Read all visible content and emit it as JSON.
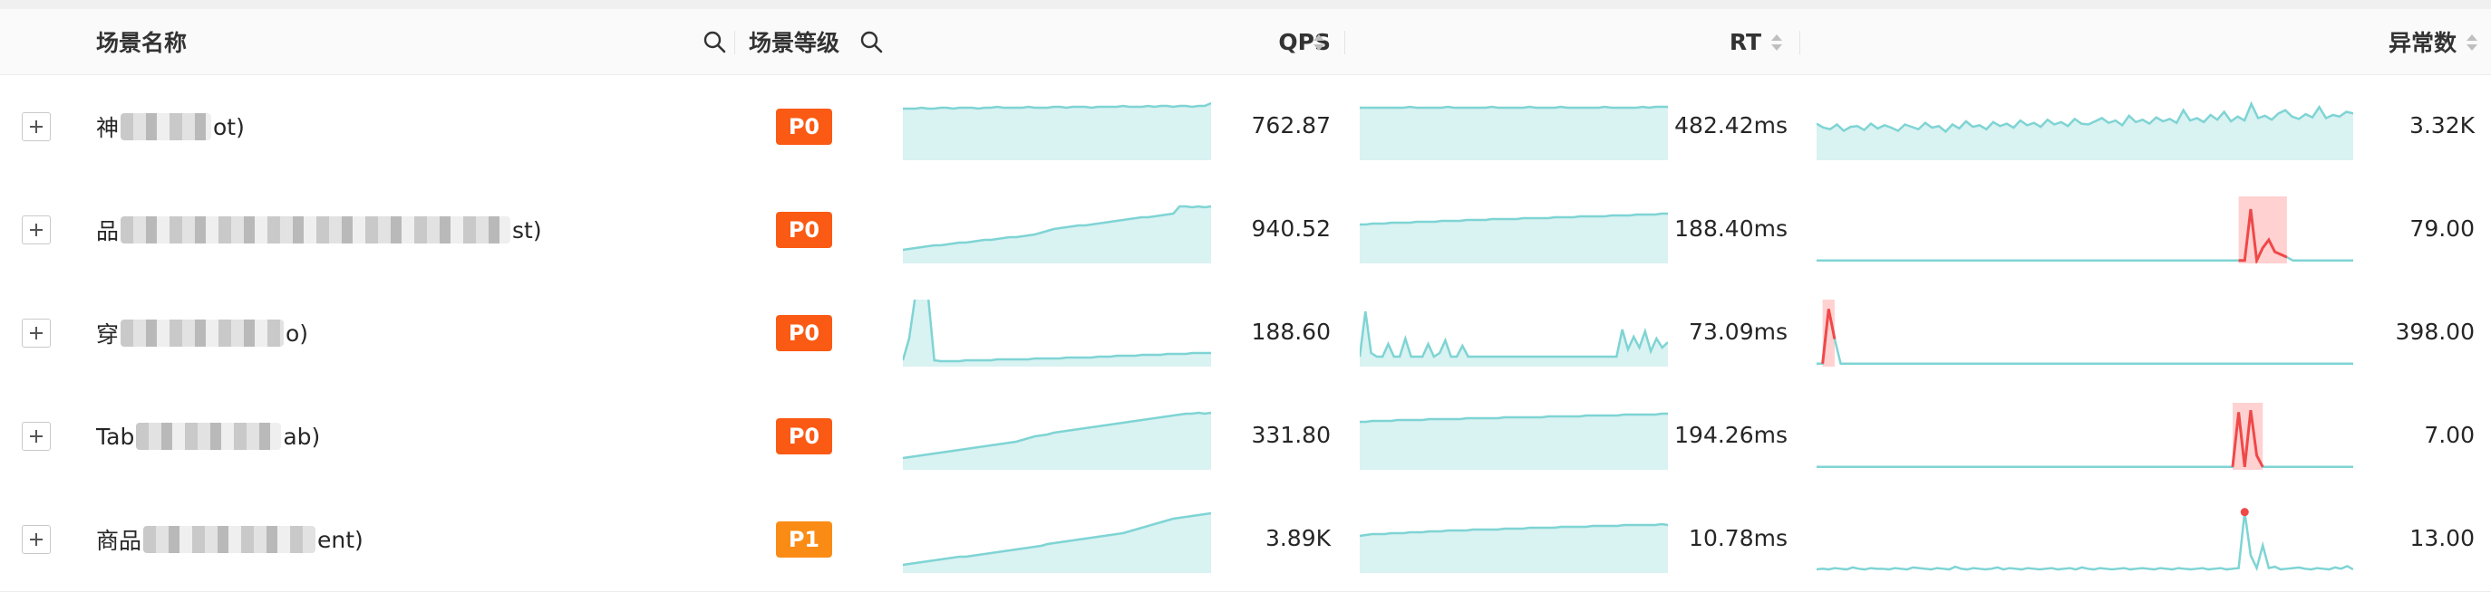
{
  "table": {
    "columns": {
      "scene_name": "场景名称",
      "scene_level": "场景等级",
      "qps": "QPS",
      "rt": "RT",
      "errors": "异常数"
    },
    "rows": [
      {
        "name_prefix": "神",
        "name_suffix": "ot)",
        "level": "P0",
        "level_color": "#fa5a14",
        "qps": "762.87",
        "rt": "482.42ms",
        "errors": "3.32K",
        "qps_trend": [
          56,
          56,
          56,
          57,
          56,
          56,
          57,
          57,
          56,
          57,
          57,
          57,
          56,
          57,
          57,
          58,
          57,
          57,
          57,
          57,
          58,
          57,
          57,
          57,
          58,
          58,
          57,
          58,
          58,
          58,
          57,
          58,
          58,
          58,
          58,
          59,
          58,
          58,
          58,
          59,
          58,
          59,
          59,
          58,
          59,
          59,
          58,
          59,
          59,
          62
        ],
        "rt_trend": [
          57,
          57,
          57,
          57,
          57,
          57,
          57,
          57,
          58,
          57,
          57,
          57,
          57,
          57,
          58,
          57,
          57,
          57,
          57,
          57,
          57,
          58,
          57,
          57,
          57,
          57,
          57,
          58,
          57,
          57,
          57,
          57,
          58,
          57,
          57,
          57,
          57,
          57,
          57,
          58,
          57,
          57,
          57,
          57,
          57,
          58,
          57,
          58,
          58,
          58
        ],
        "err_trend": [
          45,
          40,
          38,
          44,
          36,
          41,
          42,
          37,
          45,
          39,
          43,
          40,
          36,
          44,
          41,
          38,
          46,
          40,
          42,
          35,
          44,
          39,
          48,
          41,
          43,
          38,
          47,
          42,
          45,
          40,
          49,
          43,
          46,
          41,
          50,
          44,
          47,
          42,
          51,
          45,
          44,
          48,
          52,
          46,
          49,
          43,
          55,
          47,
          50,
          45,
          53,
          48,
          51,
          46,
          62,
          49,
          52,
          47,
          56,
          50,
          60,
          48,
          54,
          49,
          70,
          52,
          55,
          50,
          58,
          62,
          54,
          51,
          57,
          53,
          66,
          52,
          56,
          54,
          60,
          58
        ],
        "err_spikes": []
      },
      {
        "name_prefix": "品",
        "name_suffix": "st)",
        "level": "P0",
        "level_color": "#fa5a14",
        "qps": "940.52",
        "rt": "188.40ms",
        "errors": "79.00",
        "qps_trend": [
          14,
          15,
          16,
          17,
          18,
          19,
          19,
          20,
          21,
          22,
          22,
          23,
          24,
          25,
          25,
          26,
          27,
          28,
          28,
          29,
          30,
          31,
          33,
          35,
          37,
          38,
          39,
          40,
          41,
          41,
          42,
          43,
          44,
          45,
          46,
          47,
          48,
          49,
          50,
          50,
          51,
          52,
          53,
          54,
          62,
          62,
          61,
          62,
          61,
          62
        ],
        "rt_trend": [
          42,
          42,
          43,
          43,
          43,
          44,
          44,
          44,
          44,
          45,
          45,
          45,
          45,
          46,
          46,
          46,
          46,
          47,
          47,
          47,
          47,
          48,
          48,
          48,
          48,
          48,
          49,
          49,
          49,
          49,
          49,
          50,
          50,
          50,
          50,
          51,
          51,
          51,
          51,
          51,
          52,
          52,
          52,
          52,
          53,
          53,
          53,
          53,
          54,
          54
        ],
        "err_trend": [
          3,
          3,
          3,
          3,
          3,
          3,
          3,
          3,
          3,
          3,
          3,
          3,
          3,
          3,
          3,
          3,
          3,
          3,
          3,
          3,
          3,
          3,
          3,
          3,
          3,
          3,
          3,
          3,
          3,
          3,
          3,
          3,
          3,
          3,
          3,
          3,
          3,
          3,
          3,
          3,
          3,
          3,
          3,
          3,
          3,
          3,
          3,
          3,
          3,
          3,
          3,
          3,
          3,
          3,
          3,
          3,
          3,
          3,
          3,
          3,
          3,
          3,
          3,
          3,
          3,
          3,
          3,
          3,
          3,
          3,
          3,
          3,
          3,
          3,
          3,
          3,
          3,
          3,
          3,
          3,
          3,
          3,
          3,
          3,
          3,
          3,
          3,
          3,
          3,
          3
        ],
        "err_spikes": [
          {
            "index": 72,
            "value": 80
          },
          {
            "index": 74,
            "value": 22
          },
          {
            "index": 75,
            "value": 34
          },
          {
            "index": 76,
            "value": 16
          },
          {
            "index": 77,
            "value": 12
          },
          {
            "index": 78,
            "value": 8
          }
        ],
        "err_highlight": [
          70,
          78
        ]
      },
      {
        "name_prefix": "穿",
        "name_suffix": "o)",
        "level": "P0",
        "level_color": "#fa5a14",
        "qps": "188.60",
        "rt": "73.09ms",
        "errors": "398.00",
        "qps_trend": [
          6,
          30,
          78,
          82,
          78,
          6,
          5,
          5,
          5,
          5,
          6,
          6,
          6,
          6,
          6,
          7,
          7,
          7,
          7,
          7,
          7,
          8,
          8,
          8,
          8,
          8,
          9,
          9,
          9,
          9,
          9,
          10,
          10,
          10,
          11,
          11,
          11,
          11,
          12,
          12,
          12,
          12,
          13,
          13,
          13,
          13,
          14,
          14,
          14,
          14
        ],
        "rt_trend": [
          10,
          60,
          14,
          10,
          10,
          24,
          10,
          10,
          30,
          10,
          10,
          10,
          24,
          10,
          14,
          28,
          10,
          10,
          22,
          10,
          10,
          10,
          10,
          10,
          10,
          10,
          10,
          10,
          10,
          10,
          10,
          10,
          10,
          10,
          10,
          10,
          10,
          10,
          10,
          10,
          10,
          10,
          10,
          10,
          10,
          10,
          40,
          18,
          32,
          20,
          38,
          16,
          30,
          20,
          26
        ],
        "err_trend": [
          3,
          3,
          3,
          3,
          3,
          3,
          3,
          3,
          3,
          3,
          3,
          3,
          3,
          3,
          3,
          3,
          3,
          3,
          3,
          3,
          3,
          3,
          3,
          3,
          3,
          3,
          3,
          3,
          3,
          3,
          3,
          3,
          3,
          3,
          3,
          3,
          3,
          3,
          3,
          3,
          3,
          3,
          3,
          3,
          3,
          3,
          3,
          3,
          3,
          3,
          3,
          3,
          3,
          3,
          3,
          3,
          3,
          3,
          3,
          3,
          3,
          3,
          3,
          3,
          3,
          3,
          3,
          3,
          3,
          3,
          3,
          3,
          3,
          3,
          3,
          3,
          3,
          3,
          3,
          3,
          3,
          3,
          3,
          3,
          3,
          3,
          3,
          3,
          3,
          3
        ],
        "err_spikes": [
          {
            "index": 2,
            "value": 85
          },
          {
            "index": 3,
            "value": 40
          }
        ],
        "err_highlight": [
          1,
          3
        ]
      },
      {
        "name_prefix": "Tab",
        "name_suffix": "ab)",
        "level": "P0",
        "level_color": "#fa5a14",
        "qps": "331.80",
        "rt": "194.26ms",
        "errors": "7.00",
        "qps_trend": [
          12,
          13,
          14,
          15,
          16,
          17,
          18,
          19,
          20,
          21,
          22,
          23,
          24,
          25,
          26,
          27,
          28,
          29,
          30,
          32,
          34,
          36,
          37,
          38,
          40,
          41,
          42,
          43,
          44,
          45,
          46,
          47,
          48,
          49,
          50,
          51,
          52,
          53,
          54,
          55,
          56,
          57,
          58,
          59,
          60,
          61,
          61,
          62,
          61,
          62
        ],
        "rt_trend": [
          52,
          52,
          53,
          53,
          53,
          53,
          54,
          54,
          54,
          54,
          54,
          55,
          55,
          55,
          55,
          55,
          55,
          56,
          56,
          56,
          56,
          56,
          56,
          57,
          57,
          57,
          57,
          57,
          57,
          57,
          58,
          58,
          58,
          58,
          58,
          58,
          59,
          59,
          59,
          59,
          59,
          59,
          60,
          60,
          60,
          60,
          60,
          60,
          61,
          61
        ],
        "err_trend": [
          3,
          3,
          3,
          3,
          3,
          3,
          3,
          3,
          3,
          3,
          3,
          3,
          3,
          3,
          3,
          3,
          3,
          3,
          3,
          3,
          3,
          3,
          3,
          3,
          3,
          3,
          3,
          3,
          3,
          3,
          3,
          3,
          3,
          3,
          3,
          3,
          3,
          3,
          3,
          3,
          3,
          3,
          3,
          3,
          3,
          3,
          3,
          3,
          3,
          3,
          3,
          3,
          3,
          3,
          3,
          3,
          3,
          3,
          3,
          3,
          3,
          3,
          3,
          3,
          3,
          3,
          3,
          3,
          3,
          3,
          3,
          3,
          3,
          3,
          3,
          3,
          3,
          3,
          3,
          3,
          3,
          3,
          3,
          3,
          3,
          3,
          3,
          3,
          3,
          3
        ],
        "err_spikes": [
          {
            "index": 70,
            "value": 85
          },
          {
            "index": 72,
            "value": 88
          },
          {
            "index": 73,
            "value": 20
          }
        ],
        "err_highlight": [
          69,
          74
        ]
      },
      {
        "name_prefix": "商品",
        "name_suffix": "ent)",
        "level": "P1",
        "level_color": "#fa8c16",
        "qps": "3.89K",
        "rt": "10.78ms",
        "errors": "13.00",
        "qps_trend": [
          8,
          9,
          10,
          11,
          12,
          13,
          14,
          15,
          16,
          17,
          17,
          18,
          19,
          20,
          21,
          22,
          23,
          24,
          25,
          26,
          27,
          28,
          29,
          31,
          32,
          33,
          34,
          35,
          36,
          37,
          38,
          39,
          40,
          41,
          42,
          43,
          45,
          47,
          49,
          51,
          53,
          55,
          57,
          59,
          60,
          61,
          62,
          63,
          64,
          65
        ],
        "rt_trend": [
          40,
          41,
          42,
          42,
          42,
          43,
          43,
          43,
          44,
          44,
          44,
          45,
          45,
          45,
          46,
          46,
          46,
          46,
          47,
          47,
          47,
          47,
          47,
          48,
          48,
          48,
          48,
          49,
          49,
          49,
          49,
          49,
          50,
          50,
          50,
          50,
          50,
          51,
          51,
          51,
          51,
          51,
          52,
          52,
          52,
          52,
          52,
          52,
          53,
          52
        ],
        "err_trend": [
          4,
          5,
          4,
          6,
          5,
          4,
          7,
          5,
          4,
          6,
          5,
          5,
          4,
          6,
          5,
          4,
          7,
          6,
          5,
          4,
          6,
          5,
          4,
          8,
          5,
          4,
          6,
          5,
          4,
          5,
          7,
          4,
          6,
          5,
          4,
          6,
          5,
          4,
          5,
          6,
          4,
          5,
          6,
          4,
          7,
          5,
          4,
          6,
          5,
          4,
          5,
          6,
          4,
          5,
          6,
          5,
          4,
          6,
          5,
          4,
          6,
          5,
          4,
          5,
          6,
          4,
          5,
          6,
          4,
          5,
          6,
          4,
          5,
          6,
          40,
          6,
          8,
          4,
          5,
          6,
          7,
          5,
          4,
          6,
          5,
          4,
          7,
          5,
          9,
          4
        ],
        "err_spikes": [
          {
            "index": 71,
            "value": 90
          },
          {
            "index": 72,
            "value": 25
          }
        ],
        "err_marker_index": 71
      }
    ]
  },
  "colors": {
    "line": "#7fd4d4",
    "fill": "#d9f2f2",
    "anomaly_line": "#f04848",
    "anomaly_fill": "#ffc9c9",
    "level_p0": "#fa5a14",
    "level_p1": "#fa8c16"
  },
  "icons": [
    "search-icon",
    "sort-icon",
    "expand-icon"
  ]
}
